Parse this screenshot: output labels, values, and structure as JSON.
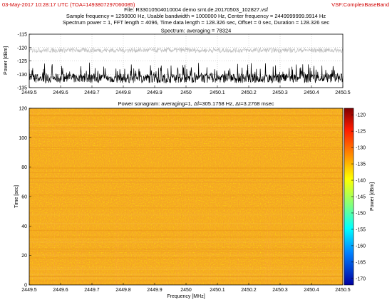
{
  "header": {
    "timestamp": "03-May-2017 10:28:17 UTC (TOA=1493807297060085)",
    "app_label": "VSF:ComplexBaseBand",
    "file_line": "File: R33010504010004 demo smt.de.20170503_102827.vsf",
    "params_line": "Sample frequency = 1250000 Hz, Usable bandwidth = 1000000 Hz, Center frequency = 2449999999.9914 Hz",
    "fft_line": "Spectrum power = 1, FFT length = 4096, Time data length = 128.326 sec, Offset = 0 sec, Duration = 128.326 sec"
  },
  "spectrum": {
    "title": "Spectrum: averaging = 78324",
    "ylabel": "Power [dBm]",
    "yticks": [
      "-115",
      "-120",
      "-125",
      "-130",
      "-135"
    ],
    "xticks": [
      "2449.5",
      "2449.6",
      "2449.7",
      "2449.8",
      "2449.9",
      "2450",
      "2450.1",
      "2450.2",
      "2450.3",
      "2450.4",
      "2450.5"
    ]
  },
  "sonagram": {
    "title": "Power sonagram: averaging=1, Δf=305.1758 Hz, Δt=3.2768 msec",
    "ylabel": "Time [sec]",
    "xlabel": "Frequency [MHz]",
    "yticks": [
      "120",
      "100",
      "80",
      "60",
      "40",
      "20",
      "0"
    ],
    "xticks": [
      "2449.5",
      "2449.6",
      "2449.7",
      "2449.8",
      "2449.9",
      "2450",
      "2450.1",
      "2450.2",
      "2450.3",
      "2450.4",
      "2450.5"
    ]
  },
  "colorbar": {
    "label": "Power [dBm]",
    "ticks": [
      "-120",
      "-125",
      "-130",
      "-135",
      "-140",
      "-145",
      "-150",
      "-155",
      "-160",
      "-165",
      "-170"
    ]
  },
  "chart_data": [
    {
      "type": "line",
      "title": "Spectrum: averaging = 78324",
      "xlabel": "",
      "ylabel": "Power [dBm]",
      "xlim": [
        2449.5,
        2450.5
      ],
      "ylim": [
        -135,
        -115
      ],
      "series": [
        {
          "name": "",
          "color": "#000000",
          "level_dBm": -131.5
        },
        {
          "name": "",
          "color": "#bdbdbd",
          "level_dBm": -121
        }
      ]
    },
    {
      "type": "heatmap",
      "title": "Power sonagram: averaging=1, Δf=305.1758 Hz, Δt=3.2768 msec",
      "xlabel": "Frequency [MHz]",
      "ylabel": "Time [sec]",
      "xlim": [
        2449.5,
        2450.5
      ],
      "ylim": [
        0,
        128
      ],
      "colorbar_range": [
        -172,
        -118
      ],
      "dominant_color": "#f5a623"
    }
  ]
}
